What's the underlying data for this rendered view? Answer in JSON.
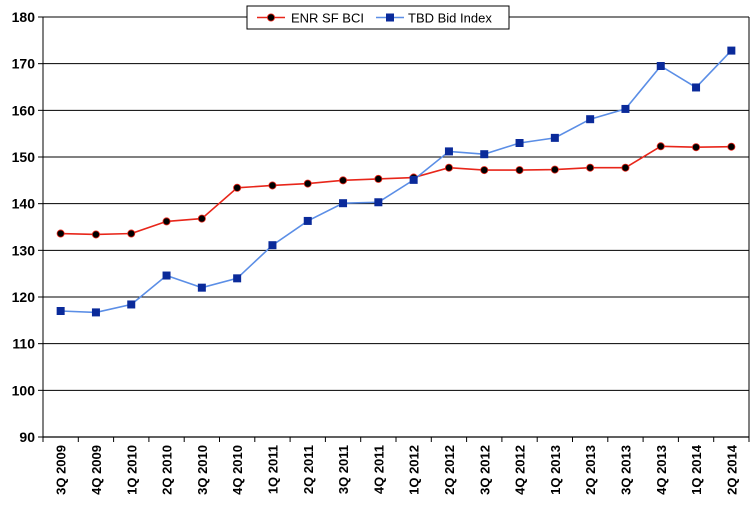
{
  "chart_data": {
    "type": "line",
    "title": "",
    "xlabel": "",
    "ylabel": "",
    "ylim": [
      90,
      180
    ],
    "yticks": [
      90,
      100,
      110,
      120,
      130,
      140,
      150,
      160,
      170,
      180
    ],
    "grid": "horizontal",
    "legend_position": "top-center",
    "categories": [
      "3Q 2009",
      "4Q 2009",
      "1Q 2010",
      "2Q 2010",
      "3Q 2010",
      "4Q 2010",
      "1Q 2011",
      "2Q 2011",
      "3Q 2011",
      "4Q 2011",
      "1Q 2012",
      "2Q 2012",
      "3Q 2012",
      "4Q 2012",
      "1Q 2013",
      "2Q 2013",
      "3Q 2013",
      "4Q 2013",
      "1Q 2014",
      "2Q 2014"
    ],
    "series": [
      {
        "name": "ENR SF BCI",
        "color": "#e8261a",
        "marker": "circle",
        "marker_color": "#000000",
        "values": [
          133.6,
          133.4,
          133.6,
          136.2,
          136.8,
          143.4,
          143.9,
          144.3,
          145.0,
          145.3,
          145.6,
          147.7,
          147.2,
          147.2,
          147.3,
          147.7,
          147.7,
          152.3,
          152.1,
          152.2
        ]
      },
      {
        "name": "TBD Bid Index",
        "color": "#5b8ee6",
        "marker": "square",
        "marker_color": "#0a2a9a",
        "values": [
          117.0,
          116.7,
          118.4,
          124.6,
          122.0,
          124.0,
          131.1,
          136.3,
          140.1,
          140.3,
          145.1,
          151.2,
          150.6,
          153.0,
          154.1,
          158.1,
          160.3,
          169.5,
          164.9,
          172.8
        ]
      }
    ]
  }
}
